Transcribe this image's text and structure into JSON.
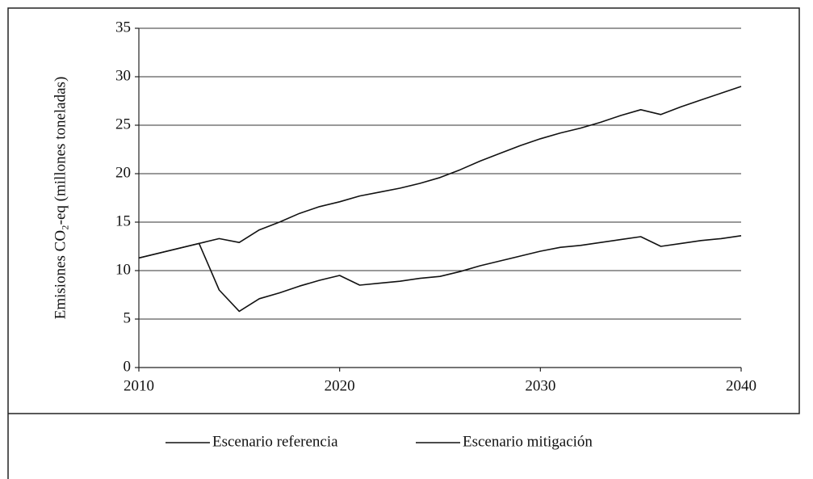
{
  "chart_data": {
    "type": "line",
    "ylabel": "Emisiones CO₂-eq (millones toneladas)",
    "x": [
      2010,
      2011,
      2012,
      2013,
      2014,
      2015,
      2016,
      2017,
      2018,
      2019,
      2020,
      2021,
      2022,
      2023,
      2024,
      2025,
      2026,
      2027,
      2028,
      2029,
      2030,
      2031,
      2032,
      2033,
      2034,
      2035,
      2036,
      2037,
      2038,
      2039,
      2040
    ],
    "series": [
      {
        "name": "Escenario referencia",
        "color": "#111111",
        "values": [
          11.3,
          11.8,
          12.3,
          12.8,
          13.3,
          12.9,
          14.2,
          15.0,
          15.9,
          16.6,
          17.1,
          17.7,
          18.1,
          18.5,
          19.0,
          19.6,
          20.4,
          21.3,
          22.1,
          22.9,
          23.6,
          24.2,
          24.7,
          25.3,
          26.0,
          26.6,
          26.1,
          26.9,
          27.6,
          28.3,
          29.0
        ]
      },
      {
        "name": "Escenario mitigación",
        "color": "#111111",
        "values": [
          11.3,
          11.8,
          12.3,
          12.8,
          8.0,
          5.8,
          7.1,
          7.7,
          8.4,
          9.0,
          9.5,
          8.5,
          8.7,
          8.9,
          9.2,
          9.4,
          9.9,
          10.5,
          11.0,
          11.5,
          12.0,
          12.4,
          12.6,
          12.9,
          13.2,
          13.5,
          12.5,
          12.8,
          13.1,
          13.3,
          13.6
        ]
      }
    ],
    "xlim": [
      2010,
      2040
    ],
    "xticks": [
      2010,
      2020,
      2030,
      2040
    ],
    "ylim": [
      0,
      35
    ],
    "yticks": [
      0,
      5,
      10,
      15,
      20,
      25,
      30,
      35
    ],
    "grid": true,
    "legend": "bottom"
  }
}
